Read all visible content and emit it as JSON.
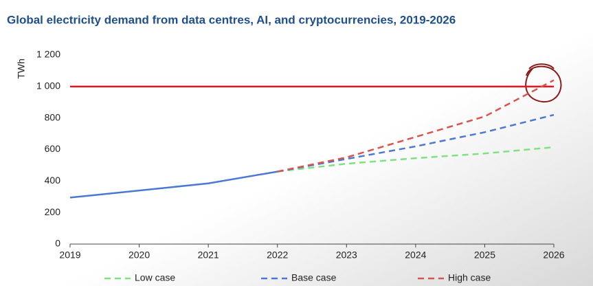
{
  "chart_data": {
    "type": "line",
    "title": "Global electricity demand from data centres, AI, and cryptocurrencies, 2019-2026",
    "y_label": "TWh",
    "x": [
      2019,
      2020,
      2021,
      2022,
      2023,
      2024,
      2025,
      2026
    ],
    "xlim": [
      2019,
      2026
    ],
    "xticks": [
      2019,
      2020,
      2021,
      2022,
      2023,
      2024,
      2025,
      2026
    ],
    "ylim": [
      0,
      1200
    ],
    "yticks": [
      0,
      200,
      400,
      600,
      800,
      {
        "value": 1000,
        "label": "1 000"
      },
      {
        "value": 1200,
        "label": "1 200"
      }
    ],
    "grid": false,
    "reference_line": {
      "value": 1000,
      "color": "#e8141c"
    },
    "series": [
      {
        "color": "#4a78d4",
        "dashed": false,
        "values": [
          295,
          340,
          385,
          460,
          null,
          null,
          null,
          null
        ]
      },
      {
        "name": "Low case",
        "color": "#7ee37e",
        "dashed": true,
        "values": [
          null,
          null,
          null,
          460,
          510,
          545,
          575,
          615
        ]
      },
      {
        "name": "Base case",
        "color": "#4a78d4",
        "dashed": true,
        "values": [
          null,
          null,
          null,
          460,
          540,
          620,
          710,
          820
        ]
      },
      {
        "name": "High case",
        "color": "#d9534f",
        "dashed": true,
        "values": [
          null,
          null,
          null,
          460,
          550,
          680,
          810,
          1040
        ]
      }
    ]
  }
}
